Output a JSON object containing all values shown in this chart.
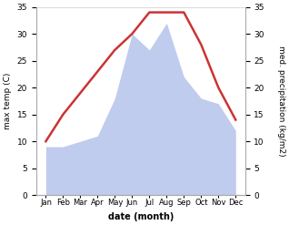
{
  "months": [
    "Jan",
    "Feb",
    "Mar",
    "Apr",
    "May",
    "Jun",
    "Jul",
    "Aug",
    "Sep",
    "Oct",
    "Nov",
    "Dec"
  ],
  "temperature": [
    10,
    15,
    19,
    23,
    27,
    30,
    34,
    34,
    34,
    28,
    20,
    14
  ],
  "precipitation": [
    9,
    9,
    10,
    11,
    18,
    30,
    27,
    32,
    22,
    18,
    17,
    12
  ],
  "temp_color": "#cc3333",
  "precip_color": "#c0ccee",
  "ylabel_left": "max temp (C)",
  "ylabel_right": "med. precipitation (kg/m2)",
  "xlabel": "date (month)",
  "ylim": [
    0,
    35
  ],
  "yticks": [
    0,
    5,
    10,
    15,
    20,
    25,
    30,
    35
  ],
  "background_color": "#ffffff"
}
